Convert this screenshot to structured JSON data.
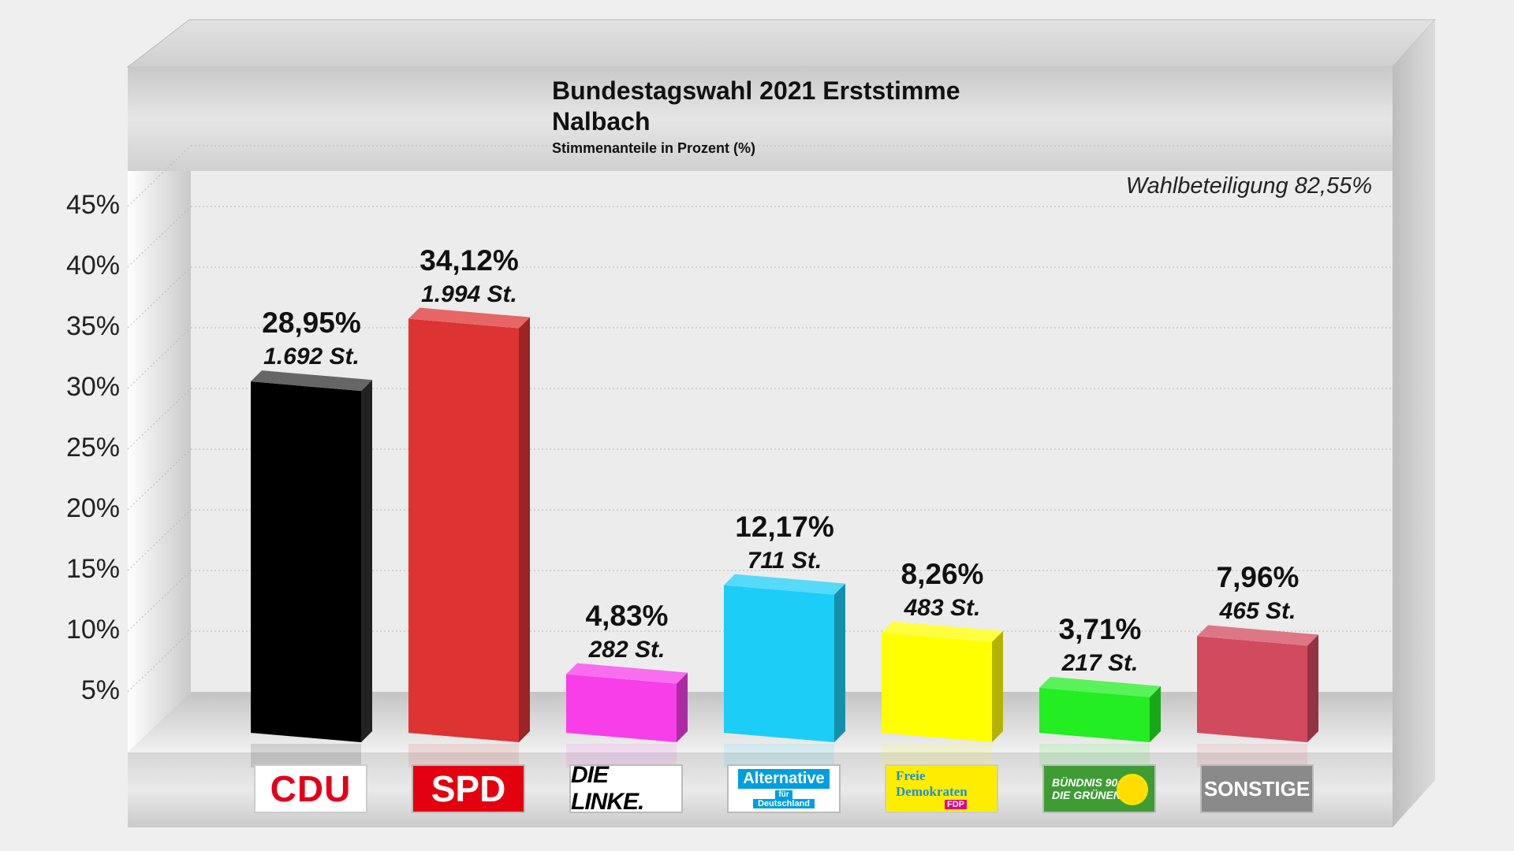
{
  "chart_data": {
    "type": "bar",
    "title": "Bundestagswahl 2021 Erststimme",
    "subtitle": "Nalbach",
    "note": "Stimmenanteile in Prozent (%)",
    "turnout": "Wahlbeteiligung 82,55%",
    "categories": [
      "CDU",
      "SPD",
      "DIE LINKE.",
      "Alternative für Deutschland",
      "Freie Demokraten FDP",
      "BÜNDNIS 90 DIE GRÜNEN",
      "SONSTIGE"
    ],
    "values": [
      28.95,
      34.12,
      4.83,
      12.17,
      8.26,
      3.71,
      7.96
    ],
    "value_labels": [
      "28,95%",
      "34,12%",
      "4,83%",
      "12,17%",
      "8,26%",
      "3,71%",
      "7,96%"
    ],
    "vote_labels": [
      "1.692 St.",
      "1.994 St.",
      "282 St.",
      "711 St.",
      "483 St.",
      "217 St.",
      "465 St."
    ],
    "colors": [
      "#000000",
      "#dd3333",
      "#f73ee8",
      "#1ccdf7",
      "#ffff00",
      "#22ee22",
      "#d24a5e"
    ],
    "yticks": [
      "5%",
      "10%",
      "15%",
      "20%",
      "25%",
      "30%",
      "35%",
      "40%",
      "45%"
    ],
    "ylim": [
      0,
      45
    ],
    "grid": true
  },
  "logos": {
    "cdu": "CDU",
    "spd": "SPD",
    "linke": "DIE LINKE.",
    "afd_main": "Alternative",
    "afd_fuer": "für",
    "afd_sub": "Deutschland",
    "fdp_1": "Freie",
    "fdp_2": "Demokraten",
    "fdp_3": "FDP",
    "gruene_1": "BÜNDNIS 90",
    "gruene_2": "DIE GRÜNEN",
    "sonstige": "SONSTIGE"
  }
}
